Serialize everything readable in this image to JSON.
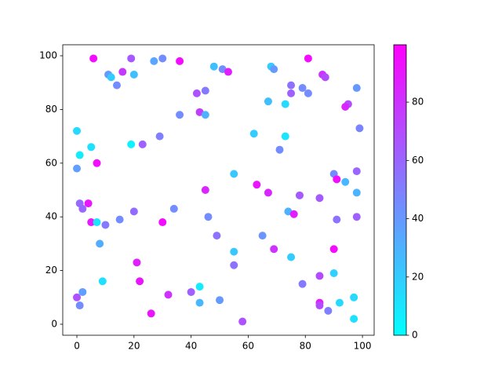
{
  "chart_data": {
    "type": "scatter",
    "colormap": "cool",
    "x": [
      5.8,
      19,
      30,
      27,
      36,
      48,
      51,
      53,
      68,
      69,
      81,
      86,
      87,
      79,
      81,
      75,
      75,
      98,
      11,
      12,
      16,
      20,
      14,
      45,
      42,
      67,
      73,
      95,
      94,
      43,
      45,
      36,
      99,
      0,
      62,
      73,
      29,
      5,
      19,
      23,
      71,
      1,
      7,
      0,
      55,
      90,
      98,
      94,
      91,
      63,
      45,
      67,
      98,
      78,
      85,
      1,
      2,
      4,
      74,
      76,
      20,
      34,
      46,
      98,
      91,
      15,
      5,
      7,
      10,
      30,
      49,
      65,
      8,
      69,
      90,
      55,
      75,
      21,
      55,
      90,
      85,
      22,
      9,
      79,
      2,
      40,
      32,
      43,
      0,
      97,
      1,
      43,
      50,
      85,
      85,
      92,
      88,
      26,
      97,
      58
    ],
    "y": [
      99,
      99,
      99,
      98,
      98,
      96,
      95,
      94,
      96,
      95,
      99,
      93,
      92,
      88,
      86,
      89,
      86,
      88,
      93,
      92,
      94,
      93,
      89,
      87,
      86,
      83,
      82,
      82,
      81,
      79,
      78,
      78,
      73,
      72,
      71,
      70,
      70,
      66,
      67,
      67,
      65,
      63,
      60,
      58,
      56,
      56,
      57,
      53,
      54,
      52,
      50,
      49,
      49,
      48,
      47,
      45,
      43,
      45,
      42,
      41,
      42,
      43,
      40,
      40,
      39,
      39,
      38,
      38,
      37,
      38,
      33,
      33,
      30,
      28,
      28,
      27,
      25,
      23,
      22,
      19,
      18,
      16,
      16,
      15,
      12,
      12,
      11,
      14,
      10,
      10,
      7,
      8,
      9,
      8,
      7,
      8,
      5,
      4,
      2,
      1
    ],
    "c": [
      95,
      65,
      45,
      35,
      95,
      25,
      45,
      88,
      20,
      40,
      95,
      80,
      70,
      45,
      45,
      55,
      62,
      40,
      40,
      20,
      78,
      25,
      45,
      52,
      68,
      25,
      15,
      70,
      85,
      75,
      30,
      45,
      48,
      15,
      20,
      10,
      50,
      12,
      5,
      62,
      45,
      8,
      95,
      38,
      22,
      45,
      60,
      28,
      95,
      92,
      85,
      85,
      30,
      65,
      65,
      58,
      60,
      92,
      30,
      88,
      58,
      45,
      45,
      62,
      55,
      45,
      90,
      10,
      52,
      95,
      55,
      42,
      32,
      80,
      95,
      22,
      20,
      88,
      55,
      18,
      70,
      92,
      12,
      52,
      38,
      62,
      80,
      8,
      68,
      15,
      45,
      28,
      40,
      90,
      70,
      15,
      50,
      92,
      12,
      68
    ],
    "xlim": [
      -4.95,
      104.1
    ],
    "ylim": [
      -4.1,
      104.1
    ],
    "clim": [
      0,
      99.7
    ],
    "xticks": [
      0,
      20,
      40,
      60,
      80,
      100
    ],
    "yticks": [
      0,
      20,
      40,
      60,
      80,
      100
    ],
    "cticks": [
      0,
      20,
      40,
      60,
      80
    ]
  }
}
